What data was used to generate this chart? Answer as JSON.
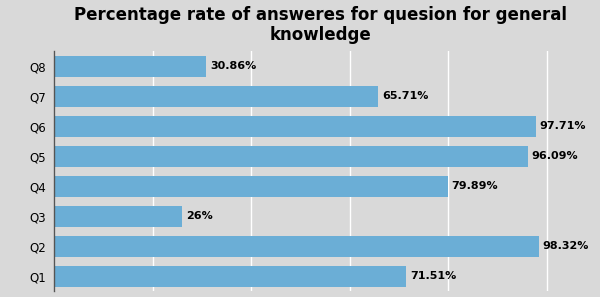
{
  "title": "Percentage rate of answeres for quesion for general\nknowledge",
  "categories": [
    "Q1",
    "Q2",
    "Q3",
    "Q4",
    "Q5",
    "Q6",
    "Q7",
    "Q8"
  ],
  "values": [
    71.51,
    98.32,
    26.0,
    79.89,
    96.09,
    97.71,
    65.71,
    30.86
  ],
  "labels": [
    "71.51%",
    "98.32%",
    "26%",
    "79.89%",
    "96.09%",
    "97.71%",
    "65.71%",
    "30.86%"
  ],
  "bar_color": "#6BAED6",
  "background_color": "#D9D9D9",
  "xlim": [
    0,
    108
  ],
  "title_fontsize": 12,
  "label_fontsize": 8,
  "tick_fontsize": 8.5
}
